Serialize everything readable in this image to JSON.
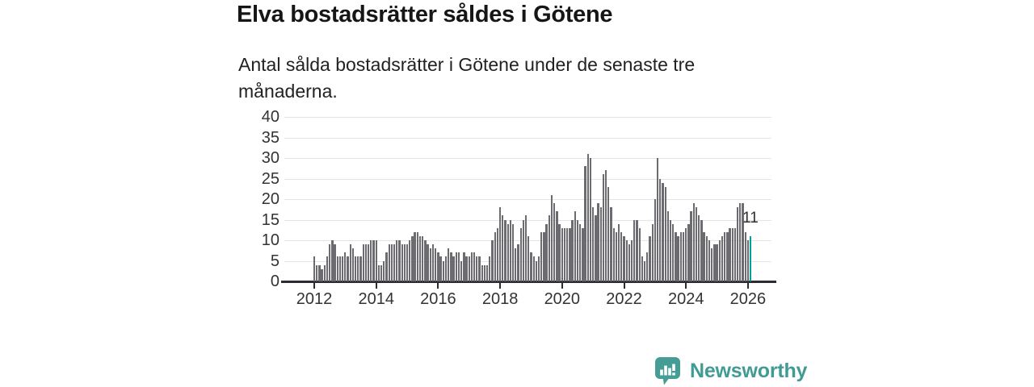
{
  "header": {
    "title": "Elva bostadsrätter såldes i Götene",
    "subtitle": "Antal sålda bostadsrätter i Götene under de senaste tre månaderna."
  },
  "chart_data": {
    "type": "bar",
    "title": "Elva bostadsrätter såldes i Götene",
    "subtitle": "Antal sålda bostadsrätter i Götene under de senaste tre månaderna.",
    "frequency": "monthly",
    "x_start_year": 2012,
    "values": [
      6,
      4,
      4,
      3,
      4,
      6,
      9,
      10,
      9,
      6,
      6,
      6,
      7,
      6,
      9,
      8,
      6,
      6,
      6,
      9,
      9,
      9,
      10,
      10,
      10,
      4,
      4,
      5,
      7,
      9,
      9,
      9,
      10,
      10,
      9,
      9,
      9,
      10,
      11,
      12,
      12,
      11,
      11,
      10,
      9,
      8,
      9,
      8,
      7,
      6,
      5,
      6,
      8,
      7,
      6,
      7,
      7,
      5,
      7,
      6,
      6,
      7,
      7,
      6,
      6,
      4,
      4,
      4,
      6,
      10,
      12,
      13,
      18,
      16,
      15,
      14,
      15,
      14,
      8,
      9,
      13,
      15,
      16,
      11,
      7,
      6,
      5,
      6,
      12,
      12,
      14,
      16,
      21,
      19,
      17,
      14,
      13,
      13,
      13,
      13,
      15,
      17,
      15,
      14,
      13,
      28,
      31,
      30,
      18,
      16,
      19,
      18,
      26,
      27,
      23,
      18,
      13,
      12,
      14,
      12,
      11,
      10,
      9,
      10,
      15,
      15,
      13,
      6,
      5,
      7,
      11,
      14,
      20,
      30,
      25,
      24,
      23,
      17,
      15,
      14,
      12,
      11,
      12,
      12,
      13,
      14,
      17,
      19,
      18,
      16,
      15,
      12,
      11,
      10,
      8,
      9,
      9,
      10,
      11,
      12,
      12,
      13,
      13,
      13,
      18,
      19,
      19,
      12,
      10,
      11
    ],
    "highlight": {
      "index": 169,
      "value": 11,
      "label": "11"
    },
    "y_ticks": [
      0,
      5,
      10,
      15,
      20,
      25,
      30,
      35,
      40
    ],
    "x_tick_years": [
      "2012",
      "2014",
      "2016",
      "2018",
      "2020",
      "2022",
      "2024",
      "2026"
    ],
    "ylim": [
      0,
      40
    ],
    "grid": true,
    "legend": "none",
    "colors": {
      "bar": "#6b6b70",
      "highlight": "#00a39c",
      "grid": "#e4e4e8",
      "axis": "#2b2b31"
    }
  },
  "footer": {
    "brand": "Newsworthy",
    "brand_color": "#3f9b94"
  }
}
